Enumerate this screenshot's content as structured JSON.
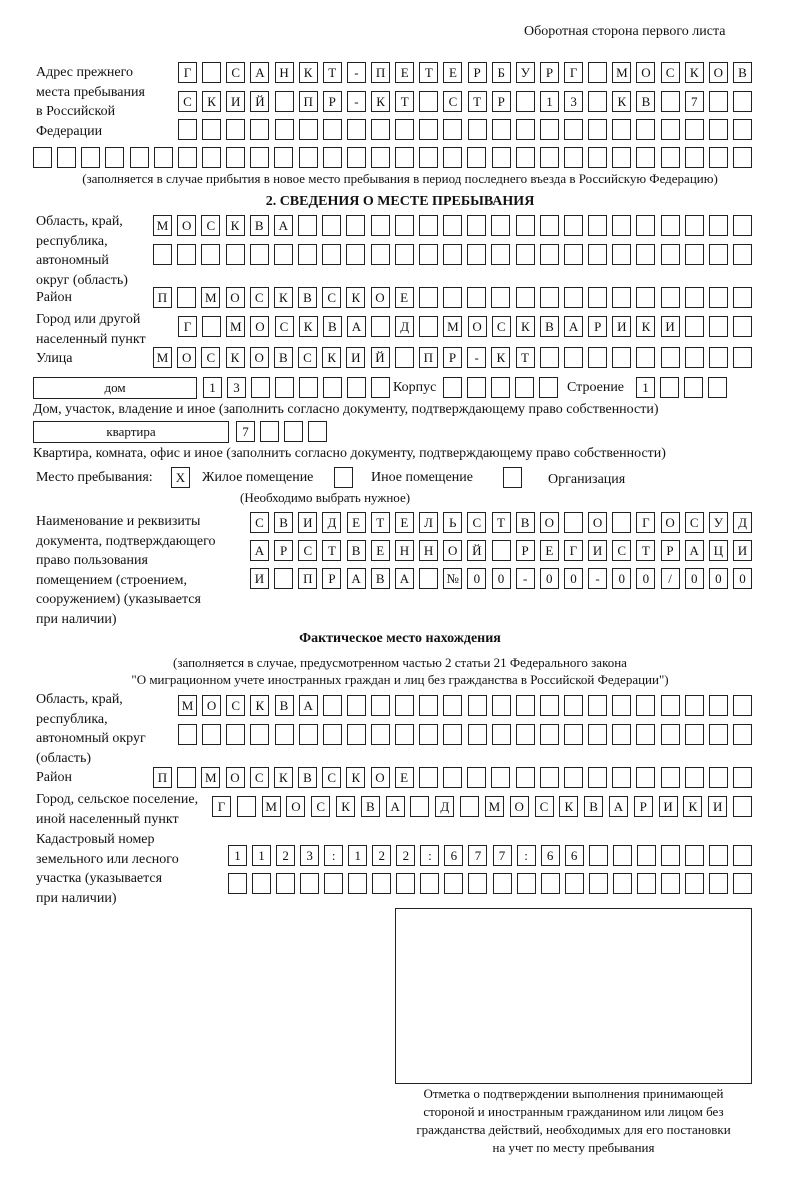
{
  "header": {
    "side_note": "Оборотная сторона первого листа"
  },
  "prev_address": {
    "label": [
      "Адрес прежнего",
      "места пребывания",
      "в Российской",
      "Федерации"
    ],
    "rows": [
      [
        "Г",
        "",
        "С",
        "А",
        "Н",
        "К",
        "Т",
        "-",
        "П",
        "Е",
        "Т",
        "Е",
        "Р",
        "Б",
        "У",
        "Р",
        "Г",
        "",
        "М",
        "О",
        "С",
        "К",
        "О",
        "В"
      ],
      [
        "С",
        "К",
        "И",
        "Й",
        "",
        "П",
        "Р",
        "-",
        "К",
        "Т",
        "",
        "С",
        "Т",
        "Р",
        "",
        "1",
        "3",
        "",
        "К",
        "В",
        "",
        "7",
        "",
        ""
      ],
      [
        "",
        "",
        "",
        "",
        "",
        "",
        "",
        "",
        "",
        "",
        "",
        "",
        "",
        "",
        "",
        "",
        "",
        "",
        "",
        "",
        "",
        "",
        "",
        ""
      ],
      [
        "",
        "",
        "",
        "",
        "",
        "",
        "",
        "",
        "",
        "",
        "",
        "",
        "",
        "",
        "",
        "",
        "",
        "",
        "",
        "",
        "",
        "",
        "",
        "",
        "",
        "",
        "",
        "",
        "",
        ""
      ]
    ],
    "note": "(заполняется в случае прибытия в новое место пребывания в период последнего въезда в Российскую Федерацию)"
  },
  "section2": {
    "title": "2. СВЕДЕНИЯ О МЕСТЕ ПРЕБЫВАНИЯ",
    "region_label": [
      "Область, край,",
      "республика,",
      "автономный",
      "округ (область)"
    ],
    "region_rows": [
      [
        "М",
        "О",
        "С",
        "К",
        "В",
        "А",
        "",
        "",
        "",
        "",
        "",
        "",
        "",
        "",
        "",
        "",
        "",
        "",
        "",
        "",
        "",
        "",
        "",
        "",
        ""
      ],
      [
        "",
        "",
        "",
        "",
        "",
        "",
        "",
        "",
        "",
        "",
        "",
        "",
        "",
        "",
        "",
        "",
        "",
        "",
        "",
        "",
        "",
        "",
        "",
        "",
        ""
      ]
    ],
    "district_label": "Район",
    "district": [
      "П",
      "",
      "М",
      "О",
      "С",
      "К",
      "В",
      "С",
      "К",
      "О",
      "Е",
      "",
      "",
      "",
      "",
      "",
      "",
      "",
      "",
      "",
      "",
      "",
      "",
      "",
      ""
    ],
    "city_label": [
      "Город или другой",
      "населенный пункт"
    ],
    "city": [
      "Г",
      "",
      "М",
      "О",
      "С",
      "К",
      "В",
      "А",
      "",
      "Д",
      "",
      "М",
      "О",
      "С",
      "К",
      "В",
      "А",
      "Р",
      "И",
      "К",
      "И",
      "",
      "",
      ""
    ],
    "street_label": "Улица",
    "street": [
      "М",
      "О",
      "С",
      "К",
      "О",
      "В",
      "С",
      "К",
      "И",
      "Й",
      "",
      "П",
      "Р",
      "-",
      "К",
      "Т",
      "",
      "",
      "",
      "",
      "",
      "",
      "",
      "",
      ""
    ],
    "house_type": "дом",
    "house": [
      "1",
      "3",
      "",
      "",
      "",
      "",
      "",
      ""
    ],
    "korpus_label": "Корпус",
    "korpus": [
      "",
      "",
      "",
      "",
      ""
    ],
    "building_label": "Строение",
    "building": [
      "1",
      "",
      "",
      ""
    ],
    "house_note": "Дом, участок, владение и иное (заполнить согласно документу, подтверждающему право собственности)",
    "apt_type": "квартира",
    "apt": [
      "7",
      "",
      "",
      ""
    ],
    "apt_note": "Квартира, комната, офис и иное (заполнить согласно документу, подтверждающему право собственности)",
    "stay_place_label": "Место пребывания:",
    "options": [
      {
        "label": "Жилое помещение",
        "mark": "X"
      },
      {
        "label": "Иное помещение",
        "mark": ""
      },
      {
        "label": "Организация",
        "mark": ""
      }
    ],
    "choose_note": "(Необходимо выбрать нужное)",
    "doc_label": [
      "Наименование и реквизиты",
      "документа, подтверждающего",
      "право пользования",
      "помещением (строением,",
      "сооружением) (указывается",
      "при наличии)"
    ],
    "doc_rows": [
      [
        "С",
        "В",
        "И",
        "Д",
        "Е",
        "Т",
        "Е",
        "Л",
        "Ь",
        "С",
        "Т",
        "В",
        "О",
        "",
        "О",
        "",
        "Г",
        "О",
        "С",
        "У",
        "Д"
      ],
      [
        "А",
        "Р",
        "С",
        "Т",
        "В",
        "Е",
        "Н",
        "Н",
        "О",
        "Й",
        "",
        "Р",
        "Е",
        "Г",
        "И",
        "С",
        "Т",
        "Р",
        "А",
        "Ц",
        "И"
      ],
      [
        "И",
        "",
        "П",
        "Р",
        "А",
        "В",
        "А",
        "",
        "№",
        "0",
        "0",
        "-",
        "0",
        "0",
        "-",
        "0",
        "0",
        "/",
        "0",
        "0",
        "0"
      ]
    ]
  },
  "actual": {
    "title": "Фактическое место нахождения",
    "note1": "(заполняется в случае, предусмотренном частью 2 статьи 21 Федерального закона",
    "note2": "\"О миграционном учете иностранных граждан и лиц без гражданства в Российской Федерации\")",
    "region_label": [
      "Область, край,",
      "республика,",
      "автономный округ",
      "(область)"
    ],
    "region_rows": [
      [
        "М",
        "О",
        "С",
        "К",
        "В",
        "А",
        "",
        "",
        "",
        "",
        "",
        "",
        "",
        "",
        "",
        "",
        "",
        "",
        "",
        "",
        "",
        "",
        "",
        ""
      ],
      [
        "",
        "",
        "",
        "",
        "",
        "",
        "",
        "",
        "",
        "",
        "",
        "",
        "",
        "",
        "",
        "",
        "",
        "",
        "",
        "",
        "",
        "",
        "",
        ""
      ]
    ],
    "district_label": "Район",
    "district": [
      "П",
      "",
      "М",
      "О",
      "С",
      "К",
      "В",
      "С",
      "К",
      "О",
      "Е",
      "",
      "",
      "",
      "",
      "",
      "",
      "",
      "",
      "",
      "",
      "",
      "",
      "",
      ""
    ],
    "city_label": [
      "Город, сельское поселение,",
      "иной населенный пункт"
    ],
    "city": [
      "Г",
      "",
      "М",
      "О",
      "С",
      "К",
      "В",
      "А",
      "",
      "Д",
      "",
      "М",
      "О",
      "С",
      "К",
      "В",
      "А",
      "Р",
      "И",
      "К",
      "И",
      ""
    ],
    "cadastre_label": [
      "Кадастровый номер",
      "земельного или лесного",
      "участка (указывается",
      "при наличии)"
    ],
    "cadastre_rows": [
      [
        "1",
        "1",
        "2",
        "3",
        ":",
        "1",
        "2",
        "2",
        ":",
        "6",
        "7",
        "7",
        ":",
        "6",
        "6",
        "",
        "",
        "",
        "",
        "",
        "",
        ""
      ],
      [
        "",
        "",
        "",
        "",
        "",
        "",
        "",
        "",
        "",
        "",
        "",
        "",
        "",
        "",
        "",
        "",
        "",
        "",
        "",
        "",
        "",
        ""
      ]
    ]
  },
  "stamp": {
    "caption": [
      "Отметка о подтверждении выполнения принимающей",
      "стороной и иностранным гражданином или лицом без",
      "гражданства действий, необходимых для его постановки",
      "на учет по месту пребывания"
    ]
  }
}
